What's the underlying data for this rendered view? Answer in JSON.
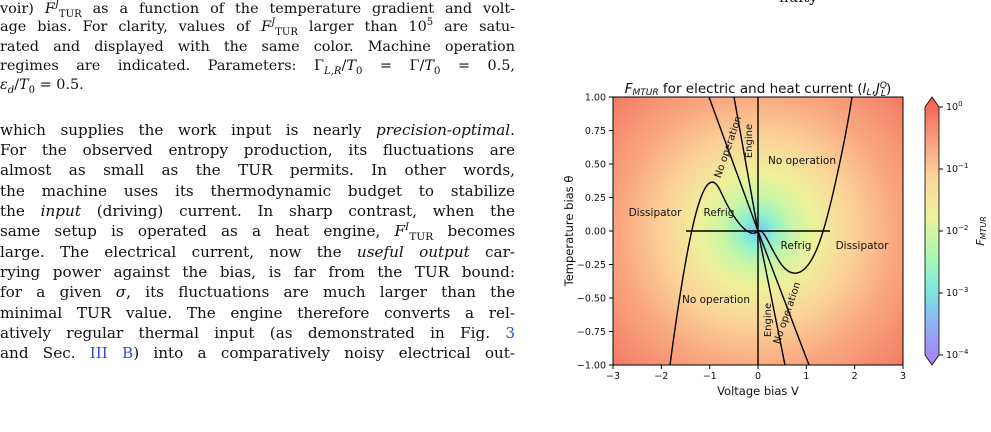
{
  "left_text": {
    "caption_lines": [
      "voir) F^J_TUR as a function of the temperature gradient and volt-",
      "age bias. For clarity, values of F^J_TUR larger than 10^5 are satu-",
      "rated and displayed with the same color. Machine operation",
      "regimes are indicated. Parameters: Γ_{L,R}/T_0 = Γ/T_0 = 0.5,",
      "ε_d/T_0 = 0.5."
    ],
    "body_lines": [
      "which supplies the work input is nearly precision-optimal.",
      "For the observed entropy production, its fluctuations are",
      "almost as small as the TUR permits. In other words,",
      "the machine uses its thermodynamic budget to stabilize",
      "the input (driving) current. In sharp contrast, when the",
      "same setup is operated as a heat engine, F^I_TUR becomes",
      "large. The electrical current, now the useful output car-",
      "rying power against the bias, is far from the TUR bound:",
      "for a given σ, its fluctuations are much larger than the",
      "minimal TUR value. The engine therefore converts a rel-",
      "atively regular thermal input (as demonstrated in Fig. 3",
      "and Sec. III B) into a comparatively noisy electrical out-"
    ]
  },
  "figure": {
    "top_fragment": "nuity",
    "title": "F_MTUR for electric and heat current (I_L, J_L^Q)",
    "xlabel": "Voltage bias V",
    "ylabel": "Temperature bias θ",
    "colorbar_label": "F_MTUR",
    "regions": {
      "dissipator_left": "Dissipator",
      "refrig_left": "Refrig",
      "no_operation_top": "No operation",
      "no_operation_upper_diag": "No operation",
      "engine_upper": "Engine",
      "refrig_right": "Refrig",
      "dissipator_right": "Dissipator",
      "no_operation_bottom": "No operation",
      "engine_lower": "Engine",
      "no_operation_lower_diag": "No operation"
    }
  },
  "chart_data": {
    "type": "heatmap",
    "title": "F_MTUR for electric and heat current (I_L, J_L^Q)",
    "xlabel": "Voltage bias V",
    "ylabel": "Temperature bias θ",
    "xlim": [
      -3,
      3
    ],
    "ylim": [
      -1,
      1
    ],
    "x_ticks": [
      "−3",
      "−2",
      "−1",
      "0",
      "1",
      "2",
      "3"
    ],
    "y_ticks": [
      "1.00",
      "0.75",
      "0.50",
      "0.25",
      "0.00",
      "−0.25",
      "−0.50",
      "−0.75",
      "−1.00"
    ],
    "colorbar": {
      "label": "F_MTUR",
      "scale": "log",
      "range": [
        0.0001,
        1
      ],
      "ticks": [
        "10^0",
        "10^-1",
        "10^-2",
        "10^-3",
        "10^-4"
      ]
    },
    "colormap": "rainbow"
  }
}
